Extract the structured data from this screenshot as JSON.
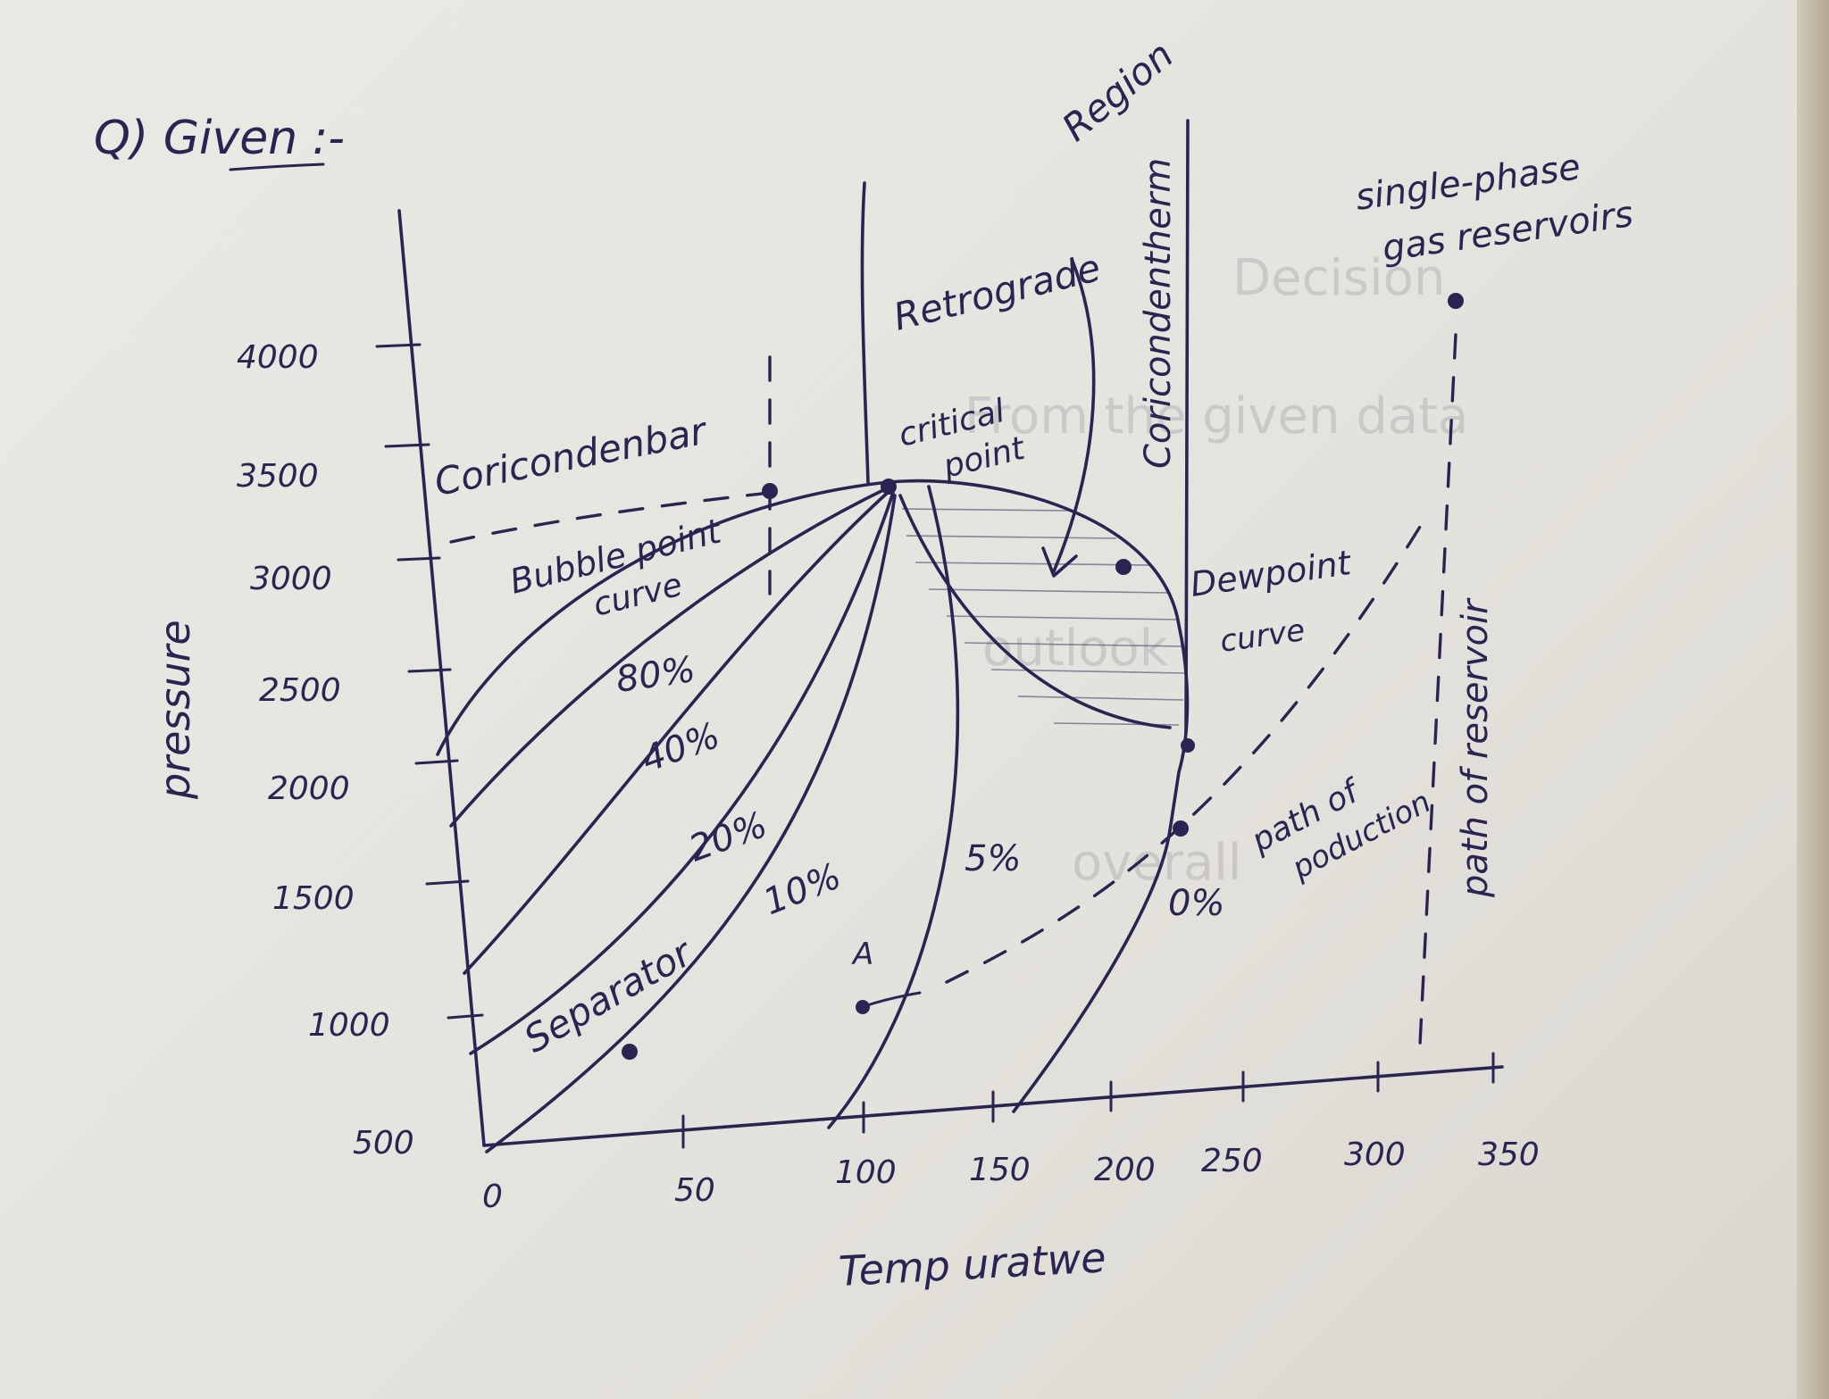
{
  "heading": "Q) Given :-",
  "axes": {
    "ylabel": "pressure",
    "xlabel": "Temp uratwe",
    "y_ticks": [
      "4000",
      "3500",
      "3000",
      "2500",
      "2000",
      "1500",
      "1000",
      "500"
    ],
    "x_ticks": [
      "0",
      "50",
      "100",
      "150",
      "200",
      "250",
      "300",
      "350"
    ]
  },
  "labels": {
    "cricondenbar": "Coricondenbar",
    "retrograde": "Retrograde",
    "region": "Region",
    "cricondentherm": "Coricondentherm",
    "critical_1": "critical",
    "critical_2": "point",
    "bubble_1": "Bubble point",
    "bubble_2": "curve",
    "dew_1": "Dewpoint",
    "dew_2": "curve",
    "single_1": "single-phase",
    "single_2": "gas reservoirs",
    "path_reservoir": "path of reservoir",
    "path_production_1": "path of",
    "path_production_2": "poduction",
    "separator": "Separator",
    "point_a": "A",
    "pct_80": "80%",
    "pct_40": "40%",
    "pct_20": "20%",
    "pct_10": "10%",
    "pct_5": "5%",
    "pct_0": "0%"
  },
  "background_ghost_text": {
    "decision": "Decision",
    "from_given": "From the given data",
    "outlook": "outlook",
    "overall": "overall"
  },
  "ink_color": "#2a2452"
}
